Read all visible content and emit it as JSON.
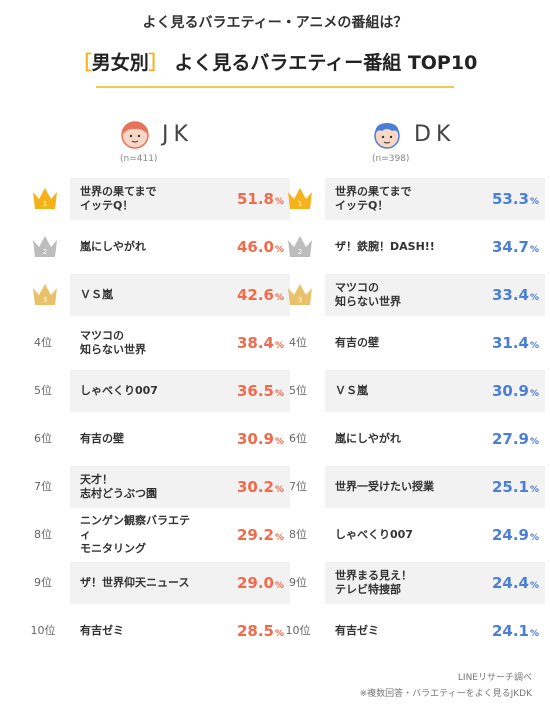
{
  "header": {
    "top_title": "よく見るバラエティー・アニメの番組は？",
    "bracket_open": "［",
    "category": "男女別",
    "bracket_close": "］",
    "main_title_rest": "よく見るバラエティー番組 TOP10"
  },
  "colors": {
    "accent": "#f6b21b",
    "jk": "#f26a4b",
    "dk": "#4a7fd6",
    "gold": "#f6b21b",
    "silver": "#bdbdbd",
    "bronze": "#e9c16a"
  },
  "jk": {
    "name": "JK",
    "n": "(n=411)"
  },
  "dk": {
    "name": "DK",
    "n": "(n=398)"
  },
  "rank_labels": [
    "1",
    "2",
    "3",
    "4位",
    "5位",
    "6位",
    "7位",
    "8位",
    "9位",
    "10位"
  ],
  "footer": {
    "line1": "LINEリサーチ調べ",
    "line2": "※複数回答・バラエティーをよく見るJKDK"
  },
  "chart_data": [
    {
      "type": "table",
      "title": "JK",
      "categories": [
        "世界の果てまで\nイッテQ！",
        "嵐にしやがれ",
        "ＶＳ嵐",
        "マツコの\n知らない世界",
        "しゃべくり007",
        "有吉の壁",
        "天才！\n志村どうぶつ園",
        "ニンゲン観察バラエティ\nモニタリング",
        "ザ！世界仰天ニュース",
        "有吉ゼミ"
      ],
      "values": [
        "51.8",
        "46.0",
        "42.6",
        "38.4",
        "36.5",
        "30.9",
        "30.2",
        "29.2",
        "29.0",
        "28.5"
      ],
      "unit": "%"
    },
    {
      "type": "table",
      "title": "DK",
      "categories": [
        "世界の果てまで\nイッテQ！",
        "ザ！鉄腕！DASH!!",
        "マツコの\n知らない世界",
        "有吉の壁",
        "ＶＳ嵐",
        "嵐にしやがれ",
        "世界一受けたい授業",
        "しゃべくり007",
        "世界まる見え！\nテレビ特捜部",
        "有吉ゼミ"
      ],
      "values": [
        "53.3",
        "34.7",
        "33.4",
        "31.4",
        "30.9",
        "27.9",
        "25.1",
        "24.9",
        "24.4",
        "24.1"
      ],
      "unit": "%"
    }
  ]
}
